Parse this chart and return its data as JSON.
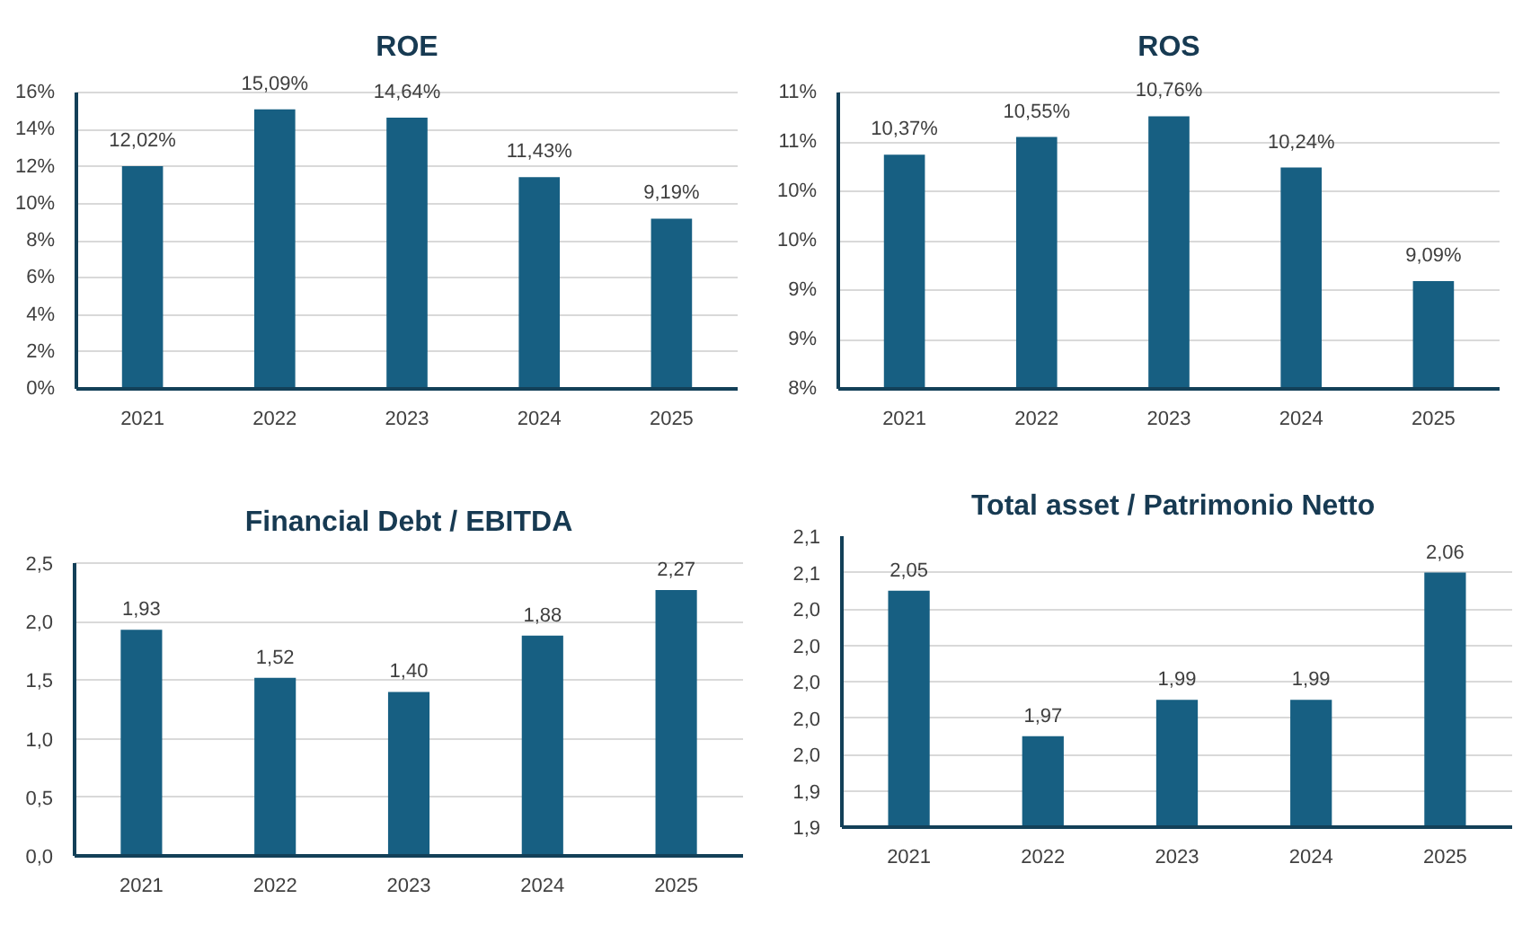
{
  "chart_data": [
    {
      "type": "bar",
      "title": "ROE",
      "categories": [
        "2021",
        "2022",
        "2023",
        "2024",
        "2025"
      ],
      "values": [
        12.02,
        15.09,
        14.64,
        11.43,
        9.19
      ],
      "value_labels": [
        "12,02%",
        "15,09%",
        "14,64%",
        "11,43%",
        "9,19%"
      ],
      "color": "#175f82",
      "ylim": [
        0,
        16
      ],
      "yticks": [
        {
          "value": 0,
          "label": "0%"
        },
        {
          "value": 2,
          "label": "2%"
        },
        {
          "value": 4,
          "label": "4%"
        },
        {
          "value": 6,
          "label": "6%"
        },
        {
          "value": 8,
          "label": "8%"
        },
        {
          "value": 10,
          "label": "10%"
        },
        {
          "value": 12,
          "label": "12%"
        },
        {
          "value": 14,
          "label": "14%"
        },
        {
          "value": 16,
          "label": "16%"
        }
      ],
      "grid": "y"
    },
    {
      "type": "bar",
      "title": "ROS",
      "categories": [
        "2021",
        "2022",
        "2023",
        "2024",
        "2025"
      ],
      "values": [
        10.37,
        10.55,
        10.76,
        10.24,
        9.09
      ],
      "value_labels": [
        "10,37%",
        "10,55%",
        "10,76%",
        "10,24%",
        "9,09%"
      ],
      "color": "#175f82",
      "ylim": [
        8,
        11
      ],
      "yticks": [
        {
          "value": 8,
          "label": "8%"
        },
        {
          "value": 8.5,
          "label": "9%"
        },
        {
          "value": 9,
          "label": "9%"
        },
        {
          "value": 9.5,
          "label": "10%"
        },
        {
          "value": 10,
          "label": "10%"
        },
        {
          "value": 10.5,
          "label": "11%"
        },
        {
          "value": 11,
          "label": "11%"
        }
      ],
      "grid": "y"
    },
    {
      "type": "bar",
      "title": "Financial Debt / EBITDA",
      "categories": [
        "2021",
        "2022",
        "2023",
        "2024",
        "2025"
      ],
      "values": [
        1.93,
        1.52,
        1.4,
        1.88,
        2.27
      ],
      "value_labels": [
        "1,93",
        "1,52",
        "1,40",
        "1,88",
        "2,27"
      ],
      "color": "#175f82",
      "ylim": [
        0,
        2.5
      ],
      "yticks": [
        {
          "value": 0,
          "label": "0,0"
        },
        {
          "value": 0.5,
          "label": "0,5"
        },
        {
          "value": 1,
          "label": "1,0"
        },
        {
          "value": 1.5,
          "label": "1,5"
        },
        {
          "value": 2,
          "label": "2,0"
        },
        {
          "value": 2.5,
          "label": "2,5"
        }
      ],
      "grid": "y"
    },
    {
      "type": "bar",
      "title": "Total asset /  Patrimonio Netto",
      "categories": [
        "2021",
        "2022",
        "2023",
        "2024",
        "2025"
      ],
      "values": [
        2.05,
        1.97,
        1.99,
        1.99,
        2.06
      ],
      "value_labels": [
        "2,05",
        "1,97",
        "1,99",
        "1,99",
        "2,06"
      ],
      "color": "#175f82",
      "ylim": [
        1.92,
        2.08
      ],
      "yticks": [
        {
          "value": 1.92,
          "label": "1,9"
        },
        {
          "value": 1.94,
          "label": "1,9"
        },
        {
          "value": 1.96,
          "label": "2,0"
        },
        {
          "value": 1.98,
          "label": "2,0"
        },
        {
          "value": 2.0,
          "label": "2,0"
        },
        {
          "value": 2.02,
          "label": "2,0"
        },
        {
          "value": 2.04,
          "label": "2,0"
        },
        {
          "value": 2.06,
          "label": "2,1"
        },
        {
          "value": 2.08,
          "label": "2,1"
        }
      ],
      "grid": "y"
    }
  ]
}
